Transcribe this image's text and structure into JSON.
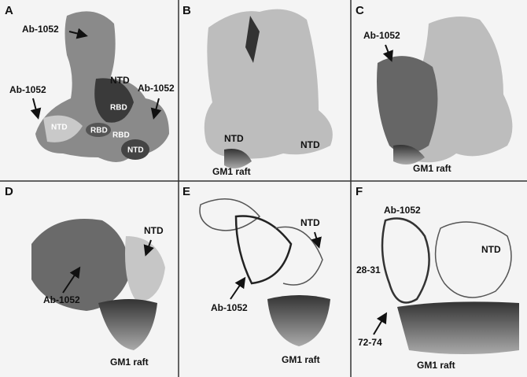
{
  "panels": [
    {
      "letter": "A",
      "labels": [
        "Ab-1052",
        "NTD",
        "Ab-1052",
        "Ab-1052",
        "RBD",
        "NTD",
        "RBD",
        "RBD",
        "NTD"
      ]
    },
    {
      "letter": "B",
      "labels": [
        "NTD",
        "NTD",
        "GM1 raft"
      ]
    },
    {
      "letter": "C",
      "labels": [
        "Ab-1052",
        "GM1 raft"
      ]
    },
    {
      "letter": "D",
      "labels": [
        "NTD",
        "Ab-1052",
        "GM1 raft"
      ]
    },
    {
      "letter": "E",
      "labels": [
        "NTD",
        "Ab-1052",
        "GM1 raft"
      ]
    },
    {
      "letter": "F",
      "labels": [
        "Ab-1052",
        "NTD",
        "28-31",
        "72-74",
        "GM1 raft"
      ]
    }
  ]
}
